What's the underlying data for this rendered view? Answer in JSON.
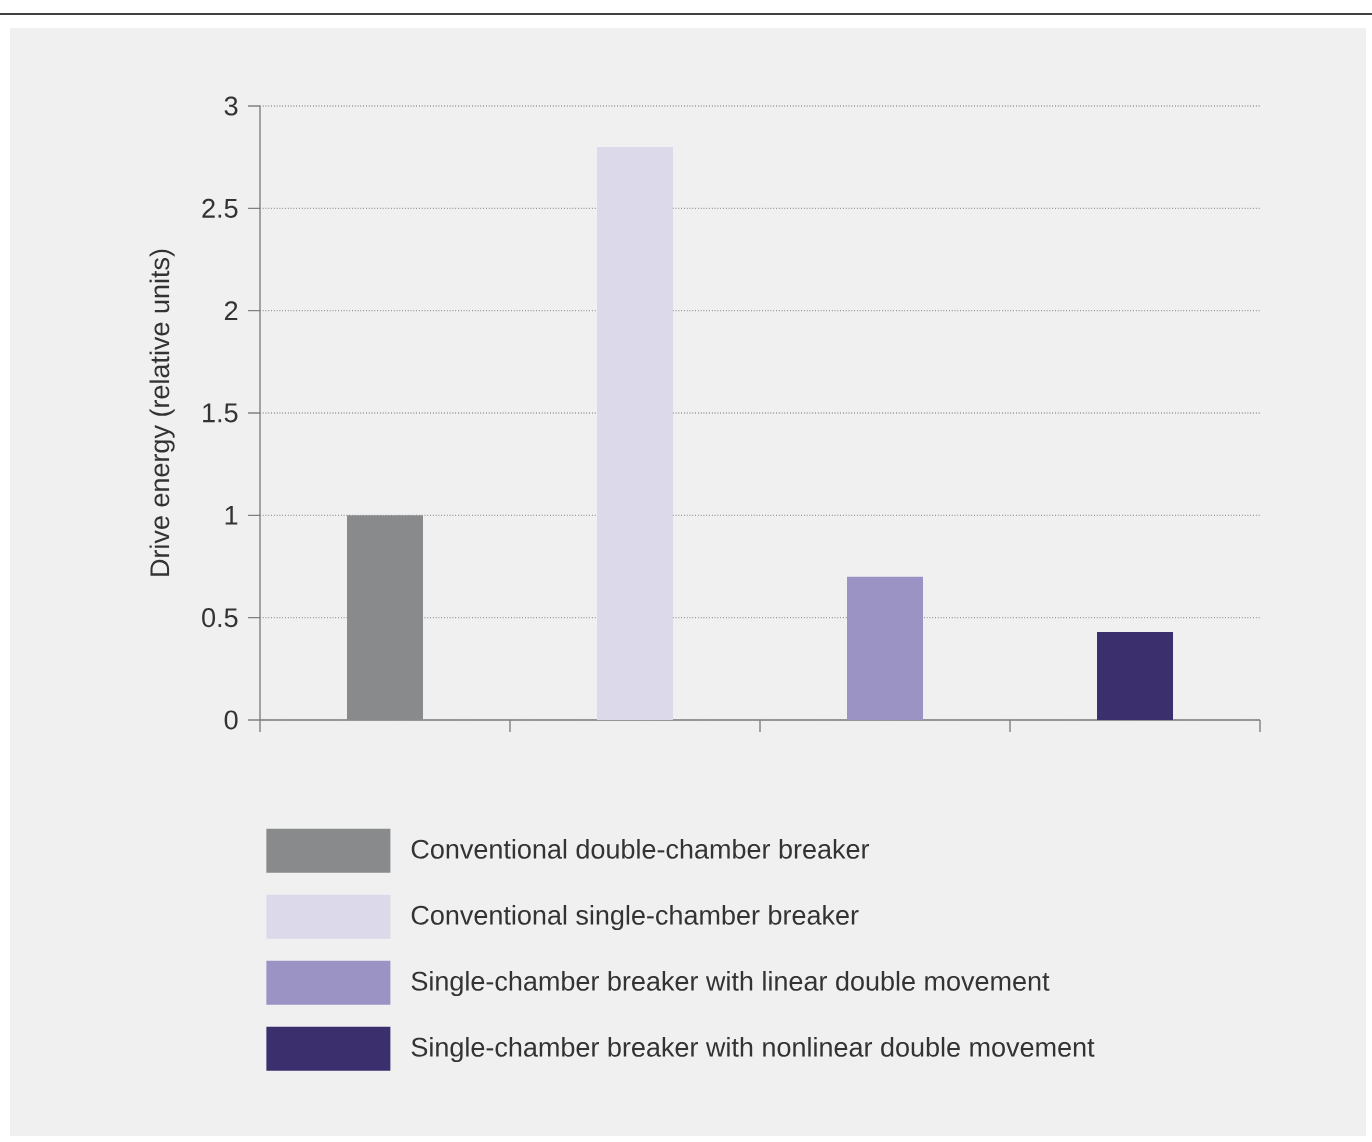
{
  "chart_data": {
    "type": "bar",
    "ylabel": "Drive energy (relative units)",
    "categories": [
      null,
      null,
      null,
      null
    ],
    "series": [
      {
        "name": "Conventional double-chamber breaker",
        "color": "#898a8c",
        "values": [
          1.0,
          null,
          null,
          null
        ]
      },
      {
        "name": "Conventional single-chamber breaker",
        "color": "#dcd9ea",
        "values": [
          null,
          2.8,
          null,
          null
        ]
      },
      {
        "name": "Single-chamber breaker with linear double movement",
        "color": "#9b93c4",
        "values": [
          null,
          null,
          0.7,
          null
        ]
      },
      {
        "name": "Single-chamber breaker with nonlinear double movement",
        "color": "#3b2f6e",
        "values": [
          null,
          null,
          null,
          0.43
        ]
      }
    ],
    "ylim": [
      0,
      3
    ],
    "yticks": [
      0,
      0.5,
      1,
      1.5,
      2,
      2.5,
      3
    ],
    "grid": "y",
    "legend": "bottom"
  }
}
